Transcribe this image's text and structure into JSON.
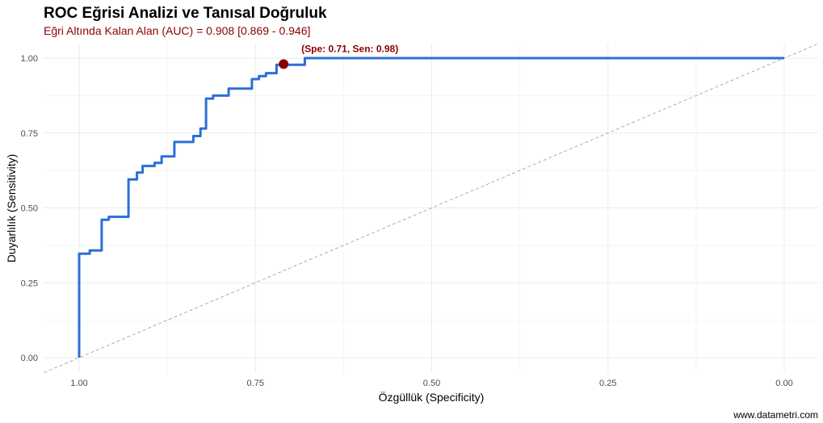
{
  "chart_data": {
    "type": "line",
    "title": "ROC Eğrisi Analizi ve Tanısal Doğruluk",
    "subtitle": "Eğri Altında Kalan Alan (AUC) = 0.908 [0.869 - 0.946]",
    "xlabel": "Özgüllük (Specificity)",
    "ylabel": "Duyarlılık (Sensitivity)",
    "xlim": [
      1.0,
      0.0
    ],
    "ylim": [
      0.0,
      1.0
    ],
    "x_reversed": true,
    "x_ticks": [
      1.0,
      0.75,
      0.5,
      0.25,
      0.0
    ],
    "x_tick_labels": [
      "1.00",
      "0.75",
      "0.50",
      "0.25",
      "0.00"
    ],
    "y_ticks": [
      0.0,
      0.25,
      0.5,
      0.75,
      1.0
    ],
    "y_tick_labels": [
      "0.00",
      "0.25",
      "0.50",
      "0.75",
      "1.00"
    ],
    "grid": true,
    "series": [
      {
        "color": "#2b6fd6",
        "points": [
          [
            1.0,
            0.0
          ],
          [
            1.0,
            0.347
          ],
          [
            0.985,
            0.347
          ],
          [
            0.985,
            0.358
          ],
          [
            0.968,
            0.358
          ],
          [
            0.968,
            0.46
          ],
          [
            0.958,
            0.46
          ],
          [
            0.958,
            0.47
          ],
          [
            0.93,
            0.47
          ],
          [
            0.93,
            0.595
          ],
          [
            0.918,
            0.595
          ],
          [
            0.918,
            0.618
          ],
          [
            0.91,
            0.618
          ],
          [
            0.91,
            0.64
          ],
          [
            0.893,
            0.64
          ],
          [
            0.893,
            0.65
          ],
          [
            0.883,
            0.65
          ],
          [
            0.883,
            0.672
          ],
          [
            0.865,
            0.672
          ],
          [
            0.865,
            0.72
          ],
          [
            0.838,
            0.72
          ],
          [
            0.838,
            0.74
          ],
          [
            0.828,
            0.74
          ],
          [
            0.828,
            0.765
          ],
          [
            0.82,
            0.765
          ],
          [
            0.82,
            0.865
          ],
          [
            0.81,
            0.865
          ],
          [
            0.81,
            0.875
          ],
          [
            0.788,
            0.875
          ],
          [
            0.788,
            0.898
          ],
          [
            0.755,
            0.898
          ],
          [
            0.755,
            0.93
          ],
          [
            0.745,
            0.93
          ],
          [
            0.745,
            0.94
          ],
          [
            0.735,
            0.94
          ],
          [
            0.735,
            0.95
          ],
          [
            0.72,
            0.95
          ],
          [
            0.72,
            0.978
          ],
          [
            0.68,
            0.978
          ],
          [
            0.68,
            1.0
          ],
          [
            0.0,
            1.0
          ]
        ]
      }
    ],
    "reference_line": {
      "from": [
        1.0,
        0.0
      ],
      "to": [
        0.0,
        1.0
      ],
      "color": "#999999",
      "style": "dashed"
    },
    "highlight_point": {
      "x": 0.71,
      "y": 0.98,
      "color": "#8b0000"
    },
    "annotation": "(Spe: 0.71, Sen: 0.98)",
    "caption": "www.datametri.com"
  }
}
